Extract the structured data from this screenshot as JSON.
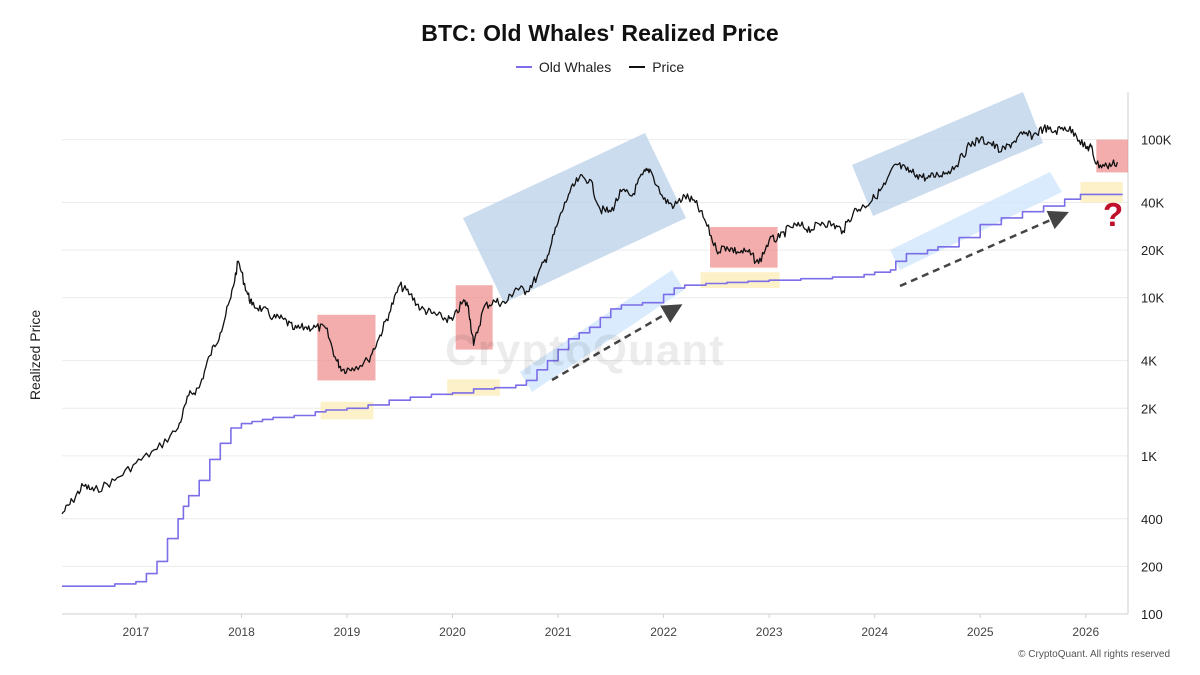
{
  "title": "BTC: Old Whales' Realized Price",
  "legend": {
    "old_whales": "Old Whales",
    "price": "Price"
  },
  "copyright": "© CryptoQuant. All rights reserved",
  "watermark": "CryptoQuant",
  "annotation_mark": "?",
  "colors": {
    "old_whales": "#7b6ee8",
    "price": "#111111",
    "bull_box": "#b9d0e9",
    "bear_box": "#ee8a8a",
    "support_box": "#fbeebe",
    "trend_arrow": "#444444",
    "question_mark": "#c0102a"
  },
  "chart_data": {
    "type": "line",
    "title": "BTC: Old Whales' Realized Price",
    "ylabel": "Realized Price",
    "xlabel": "",
    "yscale": "log",
    "ylim": [
      100,
      200000
    ],
    "xlim": [
      2016.3,
      2026.4
    ],
    "grid": true,
    "legend_position": "top-center",
    "x_ticks": [
      "2017",
      "2018",
      "2019",
      "2020",
      "2021",
      "2022",
      "2023",
      "2024",
      "2025",
      "2026"
    ],
    "y_ticks": [
      {
        "value": 100,
        "label": "100"
      },
      {
        "value": 200,
        "label": "200"
      },
      {
        "value": 400,
        "label": "400"
      },
      {
        "value": 1000,
        "label": "1K"
      },
      {
        "value": 2000,
        "label": "2K"
      },
      {
        "value": 4000,
        "label": "4K"
      },
      {
        "value": 10000,
        "label": "10K"
      },
      {
        "value": 20000,
        "label": "20K"
      },
      {
        "value": 40000,
        "label": "40K"
      },
      {
        "value": 100000,
        "label": "100K"
      }
    ],
    "series": [
      {
        "name": "Old Whales",
        "x": [
          2016.3,
          2016.6,
          2016.8,
          2017.0,
          2017.1,
          2017.2,
          2017.3,
          2017.4,
          2017.45,
          2017.5,
          2017.6,
          2017.7,
          2017.8,
          2017.9,
          2018.0,
          2018.1,
          2018.2,
          2018.3,
          2018.5,
          2018.7,
          2018.8,
          2019.0,
          2019.2,
          2019.4,
          2019.6,
          2019.8,
          2020.0,
          2020.2,
          2020.4,
          2020.6,
          2020.7,
          2020.8,
          2020.9,
          2021.0,
          2021.1,
          2021.2,
          2021.3,
          2021.4,
          2021.5,
          2021.6,
          2021.8,
          2022.0,
          2022.1,
          2022.2,
          2022.4,
          2022.6,
          2022.8,
          2023.0,
          2023.3,
          2023.6,
          2023.9,
          2024.0,
          2024.15,
          2024.2,
          2024.3,
          2024.5,
          2024.6,
          2024.8,
          2025.0,
          2025.2,
          2025.4,
          2025.6,
          2025.8,
          2025.95,
          2026.0,
          2026.2,
          2026.35
        ],
        "values": [
          150,
          150,
          155,
          160,
          180,
          215,
          300,
          400,
          480,
          560,
          700,
          950,
          1200,
          1500,
          1600,
          1650,
          1700,
          1750,
          1800,
          1900,
          1950,
          2000,
          2100,
          2250,
          2350,
          2450,
          2500,
          2650,
          2700,
          2800,
          3000,
          3500,
          4000,
          4700,
          5500,
          6000,
          6500,
          7500,
          8500,
          9000,
          9300,
          10500,
          11500,
          12000,
          12300,
          12500,
          12700,
          12900,
          13200,
          13500,
          14000,
          14500,
          15000,
          17000,
          19000,
          20000,
          21000,
          24000,
          29000,
          32000,
          35000,
          38000,
          42000,
          45000,
          45000,
          45000,
          45000
        ]
      },
      {
        "name": "Price",
        "x": [
          2016.3,
          2016.4,
          2016.5,
          2016.6,
          2016.8,
          2017.0,
          2017.2,
          2017.4,
          2017.5,
          2017.6,
          2017.7,
          2017.8,
          2017.9,
          2017.97,
          2018.05,
          2018.1,
          2018.2,
          2018.3,
          2018.4,
          2018.5,
          2018.6,
          2018.7,
          2018.8,
          2018.9,
          2018.96,
          2019.05,
          2019.2,
          2019.3,
          2019.4,
          2019.5,
          2019.6,
          2019.7,
          2019.8,
          2019.9,
          2020.0,
          2020.1,
          2020.15,
          2020.2,
          2020.3,
          2020.4,
          2020.5,
          2020.6,
          2020.7,
          2020.8,
          2020.9,
          2021.0,
          2021.1,
          2021.2,
          2021.3,
          2021.4,
          2021.5,
          2021.6,
          2021.7,
          2021.8,
          2021.87,
          2022.0,
          2022.1,
          2022.2,
          2022.3,
          2022.4,
          2022.5,
          2022.6,
          2022.7,
          2022.8,
          2022.9,
          2023.0,
          2023.1,
          2023.2,
          2023.3,
          2023.4,
          2023.5,
          2023.6,
          2023.7,
          2023.8,
          2023.9,
          2024.0,
          2024.1,
          2024.2,
          2024.3,
          2024.4,
          2024.5,
          2024.6,
          2024.7,
          2024.8,
          2024.9,
          2025.0,
          2025.1,
          2025.2,
          2025.3,
          2025.4,
          2025.5,
          2025.6,
          2025.7,
          2025.8,
          2025.9,
          2026.0,
          2026.05,
          2026.1,
          2026.2,
          2026.3
        ],
        "values": [
          430,
          520,
          650,
          600,
          700,
          900,
          1100,
          1500,
          2400,
          2700,
          4300,
          6000,
          10000,
          17000,
          11000,
          9000,
          8500,
          7500,
          7300,
          6300,
          6500,
          6500,
          6400,
          4000,
          3500,
          3600,
          4000,
          5500,
          8000,
          12000,
          10500,
          8500,
          8000,
          7500,
          7200,
          9500,
          8900,
          5000,
          8800,
          9500,
          9200,
          11500,
          11000,
          13500,
          18500,
          30000,
          45000,
          57000,
          56000,
          36000,
          35000,
          47000,
          44000,
          60000,
          65000,
          42000,
          38000,
          44000,
          40000,
          30000,
          20000,
          21000,
          19500,
          19500,
          16500,
          23000,
          24000,
          28000,
          28500,
          27000,
          30000,
          29000,
          26500,
          35000,
          38000,
          43000,
          52000,
          70000,
          64000,
          60000,
          57000,
          60000,
          63000,
          73000,
          93000,
          100000,
          95000,
          84000,
          95000,
          108000,
          106000,
          118000,
          112000,
          120000,
          110000,
          88000,
          90000,
          70000,
          68000,
          72000
        ]
      }
    ],
    "annotations": [
      {
        "kind": "bear_box",
        "x": [
          2018.72,
          2019.27
        ],
        "y": [
          3000,
          7800
        ]
      },
      {
        "kind": "bear_box",
        "x": [
          2020.03,
          2020.38
        ],
        "y": [
          4700,
          12000
        ]
      },
      {
        "kind": "bear_box",
        "x": [
          2022.44,
          2023.08
        ],
        "y": [
          15500,
          28000
        ]
      },
      {
        "kind": "bear_box",
        "x": [
          2026.1,
          2026.4
        ],
        "y": [
          62000,
          100000
        ]
      },
      {
        "kind": "support_box",
        "x": [
          2018.75,
          2019.25
        ],
        "y": [
          1700,
          2200
        ]
      },
      {
        "kind": "support_box",
        "x": [
          2019.95,
          2020.45
        ],
        "y": [
          2400,
          3050
        ]
      },
      {
        "kind": "support_box",
        "x": [
          2022.35,
          2023.1
        ],
        "y": [
          11500,
          14500
        ]
      },
      {
        "kind": "support_box",
        "x": [
          2025.95,
          2026.35
        ],
        "y": [
          40000,
          54000
        ]
      }
    ]
  }
}
